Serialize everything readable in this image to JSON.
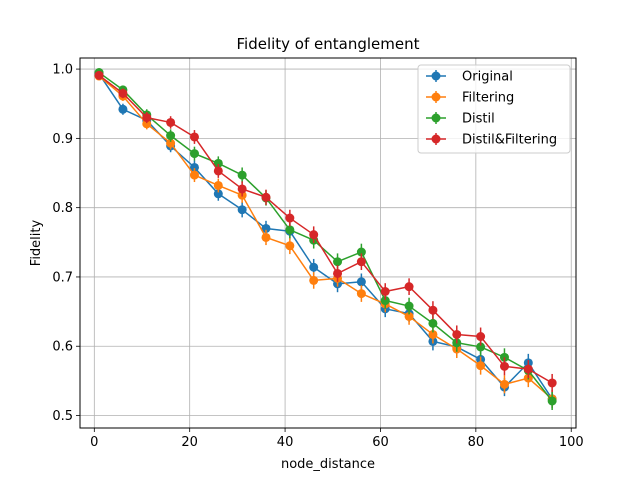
{
  "chart_data": {
    "type": "line",
    "title": "Fidelity of entanglement",
    "xlabel": "node_distance",
    "ylabel": "Fidelity",
    "xlim": [
      -3,
      101
    ],
    "ylim": [
      0.482,
      1.016
    ],
    "xticks": [
      0,
      20,
      40,
      60,
      80,
      100
    ],
    "yticks": [
      0.5,
      0.6,
      0.7,
      0.8,
      0.9,
      1.0
    ],
    "xtick_labels": [
      "0",
      "20",
      "40",
      "60",
      "80",
      "100"
    ],
    "ytick_labels": [
      "0.5",
      "0.6",
      "0.7",
      "0.8",
      "0.9",
      "1.0"
    ],
    "grid": true,
    "legend_position": "top-right",
    "x": [
      1,
      6,
      11,
      16,
      21,
      26,
      31,
      36,
      41,
      46,
      51,
      56,
      61,
      66,
      71,
      76,
      81,
      86,
      91,
      96
    ],
    "series": [
      {
        "name": "Original",
        "color": "#1f77b4",
        "values": [
          0.993,
          0.942,
          0.926,
          0.889,
          0.858,
          0.82,
          0.797,
          0.77,
          0.766,
          0.714,
          0.69,
          0.693,
          0.654,
          0.647,
          0.607,
          0.599,
          0.581,
          0.541,
          0.576,
          0.524
        ],
        "errors": [
          0.005,
          0.008,
          0.008,
          0.009,
          0.01,
          0.01,
          0.011,
          0.011,
          0.012,
          0.012,
          0.012,
          0.012,
          0.012,
          0.012,
          0.013,
          0.013,
          0.013,
          0.013,
          0.013,
          0.013
        ]
      },
      {
        "name": "Filtering",
        "color": "#ff7f0e",
        "values": [
          0.99,
          0.961,
          0.921,
          0.893,
          0.847,
          0.832,
          0.818,
          0.757,
          0.745,
          0.695,
          0.698,
          0.676,
          0.661,
          0.643,
          0.617,
          0.596,
          0.572,
          0.545,
          0.554,
          0.524
        ],
        "errors": [
          0.005,
          0.007,
          0.008,
          0.009,
          0.01,
          0.01,
          0.011,
          0.011,
          0.012,
          0.012,
          0.012,
          0.012,
          0.012,
          0.012,
          0.013,
          0.013,
          0.013,
          0.013,
          0.013,
          0.013
        ]
      },
      {
        "name": "Distil",
        "color": "#2ca02c",
        "values": [
          0.995,
          0.97,
          0.934,
          0.904,
          0.878,
          0.864,
          0.847,
          0.814,
          0.768,
          0.753,
          0.722,
          0.736,
          0.666,
          0.658,
          0.633,
          0.605,
          0.599,
          0.584,
          0.565,
          0.521
        ],
        "errors": [
          0.004,
          0.006,
          0.008,
          0.009,
          0.01,
          0.01,
          0.011,
          0.011,
          0.012,
          0.012,
          0.012,
          0.012,
          0.012,
          0.012,
          0.013,
          0.013,
          0.013,
          0.013,
          0.013,
          0.013
        ]
      },
      {
        "name": "Distil&Filtering",
        "color": "#d62728",
        "values": [
          0.991,
          0.965,
          0.93,
          0.923,
          0.902,
          0.853,
          0.827,
          0.815,
          0.785,
          0.761,
          0.705,
          0.722,
          0.679,
          0.686,
          0.652,
          0.617,
          0.614,
          0.571,
          0.567,
          0.547
        ],
        "errors": [
          0.005,
          0.007,
          0.008,
          0.009,
          0.01,
          0.01,
          0.011,
          0.011,
          0.012,
          0.012,
          0.012,
          0.012,
          0.012,
          0.012,
          0.013,
          0.013,
          0.013,
          0.013,
          0.013,
          0.013
        ]
      }
    ]
  }
}
